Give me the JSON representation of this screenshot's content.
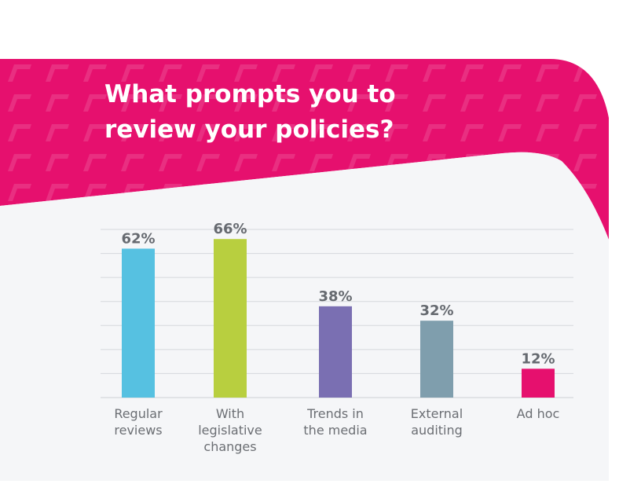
{
  "title_lines": [
    "What  prompts you to",
    "review your policies?"
  ],
  "colors": {
    "banner": "#e6106e",
    "panel": "#f5f6f8",
    "grid": "#d5d8dc",
    "value_text": "#666a70",
    "label_text": "#6b6e73"
  },
  "chart_data": {
    "type": "bar",
    "categories": [
      [
        "Regular",
        "reviews"
      ],
      [
        "With",
        "legislative",
        "changes"
      ],
      [
        "Trends in",
        "the media"
      ],
      [
        "External",
        "auditing"
      ],
      [
        "Ad hoc"
      ]
    ],
    "values": [
      62,
      66,
      38,
      32,
      12
    ],
    "value_labels": [
      "62%",
      "66%",
      "38%",
      "32%",
      "12%"
    ],
    "bar_colors": [
      "#56c1e1",
      "#b8cf3f",
      "#7a6fb2",
      "#7f9ead",
      "#e6106e"
    ],
    "title": "What  prompts you to review your policies?",
    "xlabel": "",
    "ylabel": "",
    "ylim": [
      0,
      70
    ],
    "grid": true,
    "legend": "none"
  }
}
